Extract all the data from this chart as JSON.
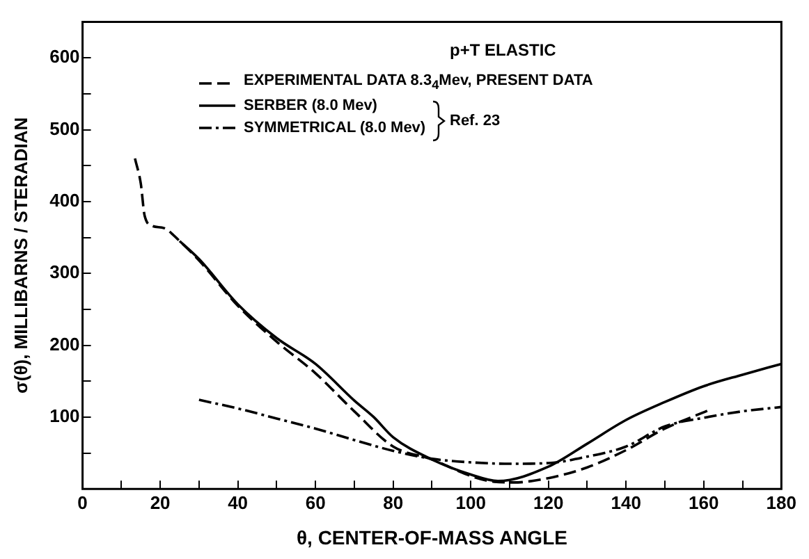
{
  "chart_data": {
    "type": "line",
    "title": "p+T ELASTIC",
    "xlabel": "θ, CENTER-OF-MASS ANGLE",
    "ylabel": "σ(θ), MILLIBARNS / STERADIAN",
    "annotations": [
      "Ref. 23"
    ],
    "xlim": [
      0,
      180
    ],
    "ylim": [
      0,
      650
    ],
    "xticks": [
      0,
      {
        "value": 10,
        "label": null
      },
      20,
      {
        "value": 30,
        "label": null
      },
      40,
      {
        "value": 50,
        "label": null
      },
      60,
      {
        "value": 70,
        "label": null
      },
      80,
      {
        "value": 90,
        "label": null
      },
      100,
      {
        "value": 110,
        "label": null
      },
      120,
      {
        "value": 130,
        "label": null
      },
      140,
      {
        "value": 150,
        "label": null
      },
      160,
      {
        "value": 170,
        "label": null
      },
      180
    ],
    "yticks": [
      {
        "value": 0,
        "label": null
      },
      {
        "value": 50,
        "label": null
      },
      100,
      {
        "value": 150,
        "label": null
      },
      200,
      {
        "value": 250,
        "label": null
      },
      300,
      {
        "value": 350,
        "label": null
      },
      400,
      {
        "value": 450,
        "label": null
      },
      500,
      {
        "value": 550,
        "label": null
      },
      600
    ],
    "grid": false,
    "legend": "top",
    "marker": "none",
    "series": [
      {
        "name": "EXPERIMENTAL DATA  8.3$_{4}$Mev, PRESENT DATA",
        "color": "#000000",
        "line_style": "dashed",
        "x": [
          13.5,
          15,
          16,
          18,
          21,
          25,
          30,
          40,
          50,
          60,
          70,
          80,
          90,
          100,
          106,
          111,
          120,
          130,
          140,
          150,
          161
        ],
        "values": [
          460,
          425,
          380,
          366,
          363,
          345,
          318,
          255,
          205,
          161,
          108,
          59,
          41,
          18,
          10,
          9,
          15,
          30,
          54,
          84,
          109
        ]
      },
      {
        "name": "SERBER (8.0 Mev)",
        "color": "#000000",
        "line_style": "solid",
        "x": [
          25,
          30,
          40,
          50,
          60,
          70,
          75,
          80,
          90,
          100,
          107,
          120,
          130,
          140,
          150,
          160,
          170,
          180
        ],
        "values": [
          345,
          320,
          257,
          210,
          174,
          123,
          100,
          72,
          41,
          20,
          11,
          31,
          63,
          96,
          121,
          143,
          159,
          174
        ]
      },
      {
        "name": "SYMMETRICAL (8.0 Mev)",
        "color": "#000000",
        "line_style": "dashdot",
        "x": [
          30,
          40,
          50,
          60,
          70,
          80,
          90,
          100,
          110,
          120,
          130,
          140,
          150,
          160,
          170,
          180
        ],
        "values": [
          124,
          112,
          98,
          84,
          68,
          53,
          42,
          37,
          35,
          36,
          45,
          59,
          87,
          99,
          108,
          114
        ]
      }
    ]
  }
}
